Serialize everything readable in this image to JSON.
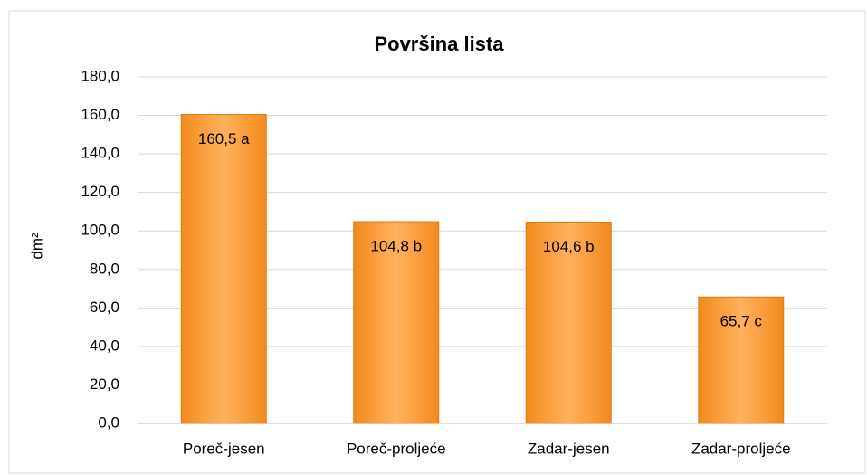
{
  "chart_data": {
    "type": "bar",
    "title": "Površina lista",
    "y_label": "dm²",
    "categories": [
      "Poreč-jesen",
      "Poreč-proljeće",
      "Zadar-jesen",
      "Zadar-proljeće"
    ],
    "values": [
      160.5,
      104.8,
      104.6,
      65.7
    ],
    "value_labels": [
      "160,5 a",
      "104,8 b",
      "104,6 b",
      "65,7 c"
    ],
    "color": "#f28a1c",
    "ylim": [
      0,
      180
    ],
    "yticks": [
      {
        "value": 0,
        "label": "0,0"
      },
      {
        "value": 20,
        "label": "20,0"
      },
      {
        "value": 40,
        "label": "40,0"
      },
      {
        "value": 60,
        "label": "60,0"
      },
      {
        "value": 80,
        "label": "80,0"
      },
      {
        "value": 100,
        "label": "100,0"
      },
      {
        "value": 120,
        "label": "120,0"
      },
      {
        "value": 140,
        "label": "140,0"
      },
      {
        "value": 160,
        "label": "160,0"
      },
      {
        "value": 180,
        "label": "180,0"
      }
    ],
    "grid": true
  }
}
